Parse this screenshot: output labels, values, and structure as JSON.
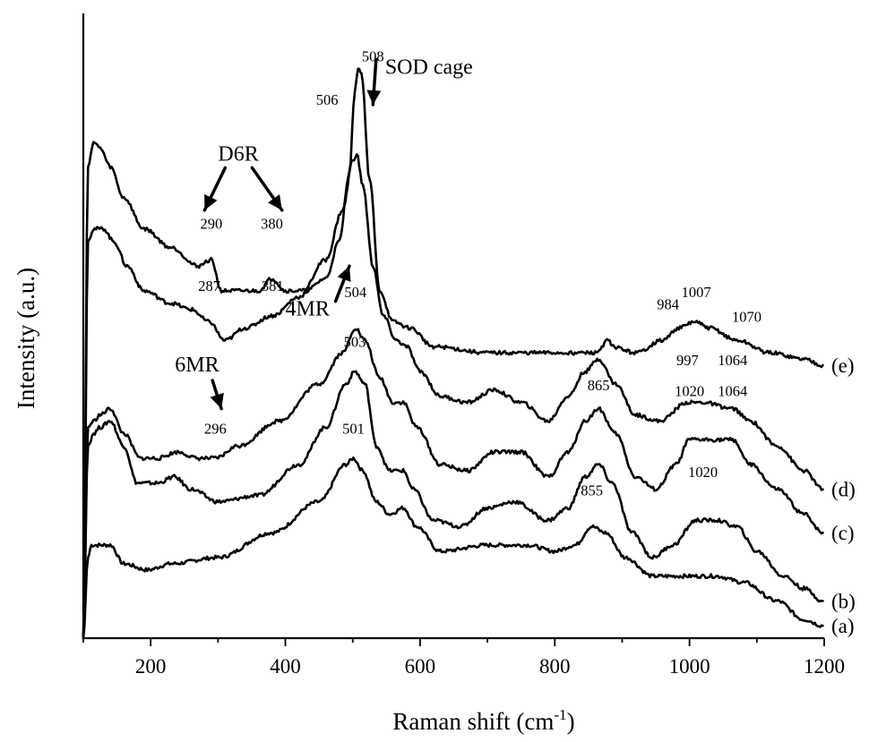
{
  "chart_data": {
    "type": "line",
    "title": "",
    "xlabel": "Raman shift (cm",
    "xlabel_sup": "-1",
    "xlabel_close": ")",
    "ylabel": "Intensity (a.u.)",
    "xlim": [
      100,
      1200
    ],
    "ylim": [
      0,
      1
    ],
    "xticks": [
      200,
      400,
      600,
      800,
      1000,
      1200
    ],
    "y_tick_labels": false,
    "grid": false,
    "legend": "none",
    "series": [
      {
        "name": "(a)",
        "points": [
          [
            100,
            0.0
          ],
          [
            107,
            0.13
          ],
          [
            112,
            0.15
          ],
          [
            125,
            0.15
          ],
          [
            140,
            0.15
          ],
          [
            160,
            0.12
          ],
          [
            195,
            0.11
          ],
          [
            230,
            0.12
          ],
          [
            300,
            0.13
          ],
          [
            380,
            0.17
          ],
          [
            450,
            0.22
          ],
          [
            490,
            0.28
          ],
          [
            501,
            0.29
          ],
          [
            515,
            0.27
          ],
          [
            535,
            0.22
          ],
          [
            555,
            0.2
          ],
          [
            575,
            0.21
          ],
          [
            595,
            0.18
          ],
          [
            630,
            0.14
          ],
          [
            700,
            0.15
          ],
          [
            760,
            0.15
          ],
          [
            800,
            0.14
          ],
          [
            830,
            0.15
          ],
          [
            855,
            0.18
          ],
          [
            875,
            0.17
          ],
          [
            905,
            0.13
          ],
          [
            945,
            0.1
          ],
          [
            1000,
            0.1
          ],
          [
            1040,
            0.1
          ],
          [
            1080,
            0.09
          ],
          [
            1130,
            0.06
          ],
          [
            1170,
            0.03
          ],
          [
            1198,
            0.02
          ]
        ]
      },
      {
        "name": "(b)",
        "points": [
          [
            100,
            0.0
          ],
          [
            107,
            0.31
          ],
          [
            115,
            0.33
          ],
          [
            125,
            0.34
          ],
          [
            140,
            0.35
          ],
          [
            160,
            0.31
          ],
          [
            180,
            0.25
          ],
          [
            210,
            0.25
          ],
          [
            235,
            0.26
          ],
          [
            260,
            0.24
          ],
          [
            300,
            0.22
          ],
          [
            360,
            0.23
          ],
          [
            420,
            0.28
          ],
          [
            460,
            0.34
          ],
          [
            490,
            0.41
          ],
          [
            503,
            0.43
          ],
          [
            518,
            0.41
          ],
          [
            535,
            0.31
          ],
          [
            555,
            0.27
          ],
          [
            575,
            0.27
          ],
          [
            590,
            0.24
          ],
          [
            620,
            0.19
          ],
          [
            660,
            0.18
          ],
          [
            700,
            0.21
          ],
          [
            740,
            0.22
          ],
          [
            790,
            0.19
          ],
          [
            820,
            0.21
          ],
          [
            845,
            0.26
          ],
          [
            865,
            0.28
          ],
          [
            885,
            0.25
          ],
          [
            915,
            0.17
          ],
          [
            945,
            0.13
          ],
          [
            975,
            0.15
          ],
          [
            1010,
            0.19
          ],
          [
            1040,
            0.19
          ],
          [
            1070,
            0.18
          ],
          [
            1100,
            0.14
          ],
          [
            1140,
            0.1
          ],
          [
            1170,
            0.08
          ],
          [
            1198,
            0.06
          ]
        ]
      },
      {
        "name": "(c)",
        "points": [
          [
            100,
            0.0
          ],
          [
            107,
            0.34
          ],
          [
            115,
            0.35
          ],
          [
            125,
            0.36
          ],
          [
            140,
            0.37
          ],
          [
            160,
            0.33
          ],
          [
            185,
            0.29
          ],
          [
            210,
            0.29
          ],
          [
            240,
            0.3
          ],
          [
            270,
            0.29
          ],
          [
            296,
            0.29
          ],
          [
            330,
            0.31
          ],
          [
            390,
            0.35
          ],
          [
            450,
            0.41
          ],
          [
            485,
            0.46
          ],
          [
            504,
            0.5
          ],
          [
            518,
            0.48
          ],
          [
            540,
            0.42
          ],
          [
            560,
            0.38
          ],
          [
            575,
            0.38
          ],
          [
            595,
            0.34
          ],
          [
            630,
            0.28
          ],
          [
            670,
            0.27
          ],
          [
            710,
            0.3
          ],
          [
            750,
            0.3
          ],
          [
            790,
            0.26
          ],
          [
            820,
            0.3
          ],
          [
            845,
            0.35
          ],
          [
            865,
            0.37
          ],
          [
            890,
            0.33
          ],
          [
            920,
            0.26
          ],
          [
            950,
            0.24
          ],
          [
            980,
            0.28
          ],
          [
            1000,
            0.32
          ],
          [
            1020,
            0.32
          ],
          [
            1045,
            0.32
          ],
          [
            1064,
            0.32
          ],
          [
            1090,
            0.28
          ],
          [
            1130,
            0.24
          ],
          [
            1170,
            0.2
          ],
          [
            1198,
            0.17
          ]
        ]
      },
      {
        "name": "(d)",
        "points": [
          [
            100,
            0.0
          ],
          [
            107,
            0.64
          ],
          [
            115,
            0.66
          ],
          [
            130,
            0.66
          ],
          [
            145,
            0.64
          ],
          [
            165,
            0.6
          ],
          [
            190,
            0.56
          ],
          [
            230,
            0.54
          ],
          [
            260,
            0.53
          ],
          [
            287,
            0.51
          ],
          [
            310,
            0.48
          ],
          [
            340,
            0.5
          ],
          [
            381,
            0.52
          ],
          [
            420,
            0.55
          ],
          [
            460,
            0.61
          ],
          [
            485,
            0.69
          ],
          [
            500,
            0.77
          ],
          [
            506,
            0.78
          ],
          [
            515,
            0.73
          ],
          [
            530,
            0.6
          ],
          [
            545,
            0.52
          ],
          [
            565,
            0.48
          ],
          [
            580,
            0.47
          ],
          [
            600,
            0.43
          ],
          [
            630,
            0.39
          ],
          [
            670,
            0.38
          ],
          [
            710,
            0.4
          ],
          [
            750,
            0.38
          ],
          [
            790,
            0.35
          ],
          [
            820,
            0.39
          ],
          [
            845,
            0.43
          ],
          [
            865,
            0.45
          ],
          [
            890,
            0.41
          ],
          [
            920,
            0.36
          ],
          [
            955,
            0.35
          ],
          [
            997,
            0.38
          ],
          [
            1020,
            0.38
          ],
          [
            1064,
            0.37
          ],
          [
            1090,
            0.35
          ],
          [
            1130,
            0.31
          ],
          [
            1170,
            0.27
          ],
          [
            1198,
            0.24
          ]
        ]
      },
      {
        "name": "(e)",
        "points": [
          [
            100,
            0.0
          ],
          [
            107,
            0.76
          ],
          [
            115,
            0.8
          ],
          [
            125,
            0.79
          ],
          [
            140,
            0.76
          ],
          [
            160,
            0.71
          ],
          [
            190,
            0.66
          ],
          [
            230,
            0.63
          ],
          [
            270,
            0.6
          ],
          [
            290,
            0.61
          ],
          [
            305,
            0.56
          ],
          [
            330,
            0.56
          ],
          [
            360,
            0.56
          ],
          [
            380,
            0.58
          ],
          [
            400,
            0.56
          ],
          [
            430,
            0.56
          ],
          [
            460,
            0.58
          ],
          [
            480,
            0.64
          ],
          [
            495,
            0.75
          ],
          [
            503,
            0.88
          ],
          [
            508,
            0.92
          ],
          [
            513,
            0.91
          ],
          [
            525,
            0.74
          ],
          [
            540,
            0.56
          ],
          [
            560,
            0.51
          ],
          [
            585,
            0.5
          ],
          [
            620,
            0.47
          ],
          [
            700,
            0.46
          ],
          [
            780,
            0.46
          ],
          [
            810,
            0.46
          ],
          [
            860,
            0.46
          ],
          [
            880,
            0.48
          ],
          [
            885,
            0.47
          ],
          [
            920,
            0.46
          ],
          [
            960,
            0.48
          ],
          [
            984,
            0.5
          ],
          [
            1007,
            0.51
          ],
          [
            1030,
            0.5
          ],
          [
            1070,
            0.48
          ],
          [
            1120,
            0.46
          ],
          [
            1170,
            0.45
          ],
          [
            1198,
            0.44
          ]
        ]
      }
    ],
    "curve_labels": [
      "(a)",
      "(b)",
      "(c)",
      "(d)",
      "(e)"
    ],
    "peak_labels": [
      {
        "text": "501",
        "x": 501,
        "y": 0.33
      },
      {
        "text": "855",
        "x": 855,
        "y": 0.23
      },
      {
        "text": "1020",
        "x": 1020,
        "y": 0.26
      },
      {
        "text": "503",
        "x": 503,
        "y": 0.47
      },
      {
        "text": "865",
        "x": 865,
        "y": 0.4
      },
      {
        "text": "1020",
        "x": 1000,
        "y": 0.39
      },
      {
        "text": "1064",
        "x": 1064,
        "y": 0.39
      },
      {
        "text": "296",
        "x": 296,
        "y": 0.33
      },
      {
        "text": "504",
        "x": 504,
        "y": 0.55
      },
      {
        "text": "997",
        "x": 997,
        "y": 0.44
      },
      {
        "text": "1064",
        "x": 1064,
        "y": 0.44
      },
      {
        "text": "287",
        "x": 287,
        "y": 0.56
      },
      {
        "text": "381",
        "x": 381,
        "y": 0.56
      },
      {
        "text": "506",
        "x": 462,
        "y": 0.86
      },
      {
        "text": "290",
        "x": 290,
        "y": 0.66
      },
      {
        "text": "380",
        "x": 380,
        "y": 0.66
      },
      {
        "text": "508",
        "x": 530,
        "y": 0.93
      },
      {
        "text": "984",
        "x": 968,
        "y": 0.53
      },
      {
        "text": "1007",
        "x": 1010,
        "y": 0.55
      },
      {
        "text": "1070",
        "x": 1085,
        "y": 0.51
      }
    ],
    "annotations": [
      {
        "text": "SOD cage",
        "x": 548,
        "y": 0.91,
        "arrow_to": [
          530,
          0.86
        ]
      },
      {
        "text": "D6R",
        "x": 300,
        "y": 0.77,
        "arrow_to": [
          [
            280,
            0.69
          ],
          [
            395,
            0.69
          ]
        ]
      },
      {
        "text": "4MR",
        "x": 400,
        "y": 0.52,
        "arrow_to": [
          495,
          0.6
        ]
      },
      {
        "text": "6MR",
        "x": 236,
        "y": 0.43,
        "arrow_to": [
          305,
          0.37
        ]
      }
    ]
  }
}
